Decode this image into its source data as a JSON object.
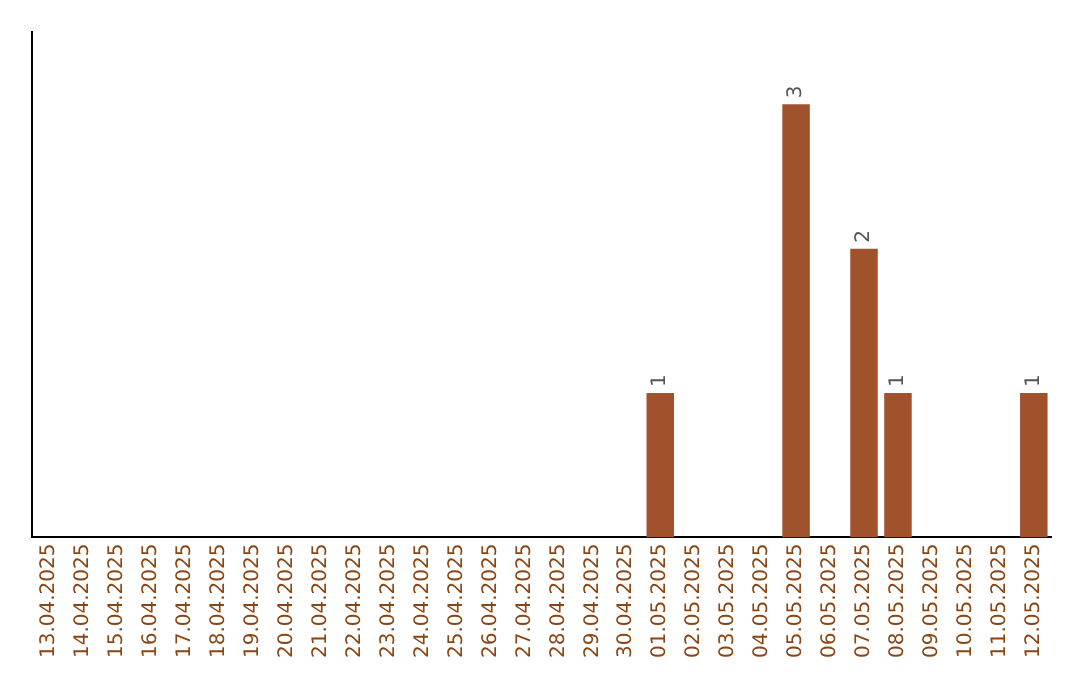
{
  "chart_data": {
    "type": "bar",
    "categories": [
      "13.04.2025",
      "14.04.2025",
      "15.04.2025",
      "16.04.2025",
      "17.04.2025",
      "18.04.2025",
      "19.04.2025",
      "20.04.2025",
      "21.04.2025",
      "22.04.2025",
      "23.04.2025",
      "24.04.2025",
      "25.04.2025",
      "26.04.2025",
      "27.04.2025",
      "28.04.2025",
      "29.04.2025",
      "30.04.2025",
      "01.05.2025",
      "02.05.2025",
      "03.05.2025",
      "04.05.2025",
      "05.05.2025",
      "06.05.2025",
      "07.05.2025",
      "08.05.2025",
      "09.05.2025",
      "10.05.2025",
      "11.05.2025",
      "12.05.2025"
    ],
    "values": [
      null,
      null,
      null,
      null,
      null,
      null,
      null,
      null,
      null,
      null,
      null,
      null,
      null,
      null,
      null,
      null,
      null,
      null,
      1,
      null,
      null,
      null,
      3,
      null,
      2,
      1,
      null,
      null,
      null,
      1
    ],
    "data_labels": true,
    "color": "#a0522d",
    "grid": false,
    "legend": false
  }
}
